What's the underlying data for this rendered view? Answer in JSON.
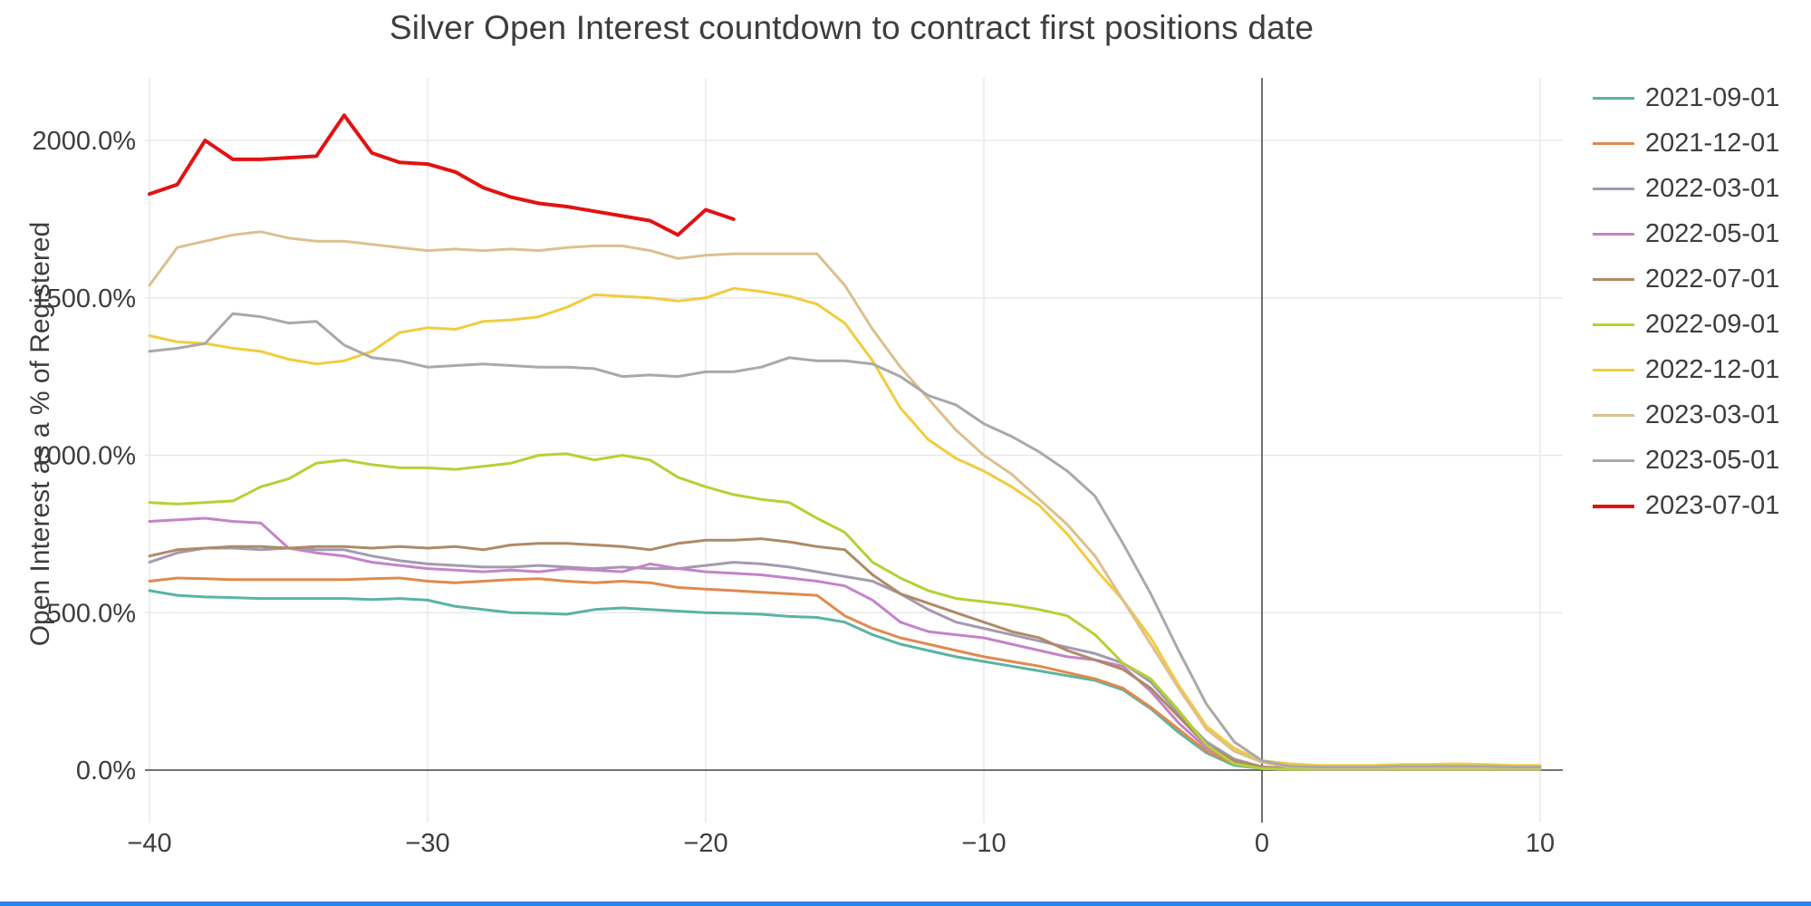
{
  "title": "Silver Open Interest countdown to contract first positions date",
  "chart_data": {
    "type": "line",
    "title": "Silver Open Interest countdown to contract first positions date",
    "xlabel": "",
    "ylabel": "Open Interest as a % of Registered",
    "x_start": -40,
    "x_step": 1,
    "xlim": [
      -40.2,
      10.8
    ],
    "ylim": [
      -90,
      2200
    ],
    "grid": true,
    "legend_position": "right",
    "x_ticks": [
      {
        "v": -40,
        "label": "−40"
      },
      {
        "v": -30,
        "label": "−30"
      },
      {
        "v": -20,
        "label": "−20"
      },
      {
        "v": -10,
        "label": "−10"
      },
      {
        "v": 0,
        "label": "0"
      },
      {
        "v": 10,
        "label": "10"
      }
    ],
    "y_ticks": [
      {
        "v": 0,
        "label": "0.0%"
      },
      {
        "v": 500,
        "label": "500.0%"
      },
      {
        "v": 1000,
        "label": "1000.0%"
      },
      {
        "v": 1500,
        "label": "1500.0%"
      },
      {
        "v": 2000,
        "label": "2000.0%"
      }
    ],
    "zero_lines": {
      "x": 0,
      "y": 0,
      "color": "#444444"
    },
    "series": [
      {
        "name": "2021-09-01",
        "color": "#5ab4a2",
        "width": 3,
        "values": [
          570,
          555,
          550,
          548,
          545,
          545,
          545,
          545,
          542,
          545,
          540,
          520,
          510,
          500,
          498,
          495,
          510,
          515,
          510,
          505,
          500,
          498,
          495,
          488,
          485,
          470,
          430,
          400,
          380,
          360,
          345,
          330,
          315,
          300,
          285,
          255,
          195,
          120,
          55,
          15,
          5,
          3,
          3,
          3,
          3,
          3,
          3,
          3,
          3,
          3,
          3
        ]
      },
      {
        "name": "2021-12-01",
        "color": "#e08a4e",
        "width": 3,
        "values": [
          600,
          610,
          608,
          605,
          605,
          605,
          605,
          605,
          608,
          610,
          600,
          595,
          600,
          605,
          608,
          600,
          595,
          600,
          595,
          580,
          575,
          570,
          565,
          560,
          555,
          490,
          450,
          420,
          400,
          380,
          360,
          345,
          330,
          310,
          290,
          260,
          200,
          130,
          60,
          20,
          5,
          3,
          3,
          3,
          3,
          3,
          3,
          3,
          3,
          3,
          3
        ]
      },
      {
        "name": "2022-03-01",
        "color": "#a49ab0",
        "width": 3,
        "values": [
          660,
          690,
          705,
          705,
          700,
          705,
          700,
          700,
          680,
          665,
          655,
          650,
          645,
          645,
          650,
          645,
          640,
          645,
          640,
          640,
          650,
          660,
          655,
          645,
          630,
          615,
          600,
          560,
          510,
          470,
          450,
          430,
          410,
          390,
          370,
          340,
          280,
          180,
          90,
          35,
          10,
          6,
          6,
          6,
          6,
          6,
          6,
          6,
          6,
          6,
          6
        ]
      },
      {
        "name": "2022-05-01",
        "color": "#c583c9",
        "width": 3,
        "values": [
          790,
          795,
          800,
          790,
          785,
          705,
          690,
          680,
          660,
          650,
          640,
          635,
          630,
          635,
          630,
          640,
          635,
          630,
          655,
          640,
          630,
          625,
          620,
          610,
          600,
          585,
          540,
          470,
          440,
          430,
          420,
          400,
          380,
          360,
          350,
          330,
          250,
          150,
          70,
          25,
          8,
          5,
          5,
          5,
          5,
          5,
          5,
          5,
          5,
          5,
          5
        ]
      },
      {
        "name": "2022-07-01",
        "color": "#af8a67",
        "width": 3,
        "values": [
          680,
          700,
          705,
          710,
          710,
          705,
          710,
          710,
          705,
          710,
          705,
          710,
          700,
          715,
          720,
          720,
          715,
          710,
          700,
          720,
          730,
          730,
          735,
          725,
          710,
          700,
          620,
          560,
          530,
          500,
          470,
          440,
          420,
          380,
          350,
          320,
          260,
          170,
          80,
          30,
          10,
          5,
          5,
          5,
          5,
          5,
          5,
          5,
          5,
          5,
          5
        ]
      },
      {
        "name": "2022-09-01",
        "color": "#b3d235",
        "width": 3,
        "values": [
          850,
          845,
          850,
          855,
          900,
          925,
          975,
          985,
          970,
          960,
          960,
          955,
          965,
          975,
          1000,
          1005,
          985,
          1000,
          985,
          930,
          900,
          875,
          860,
          850,
          800,
          755,
          660,
          610,
          570,
          545,
          535,
          525,
          510,
          490,
          430,
          340,
          290,
          190,
          80,
          20,
          5,
          3,
          3,
          3,
          3,
          3,
          3,
          3,
          3,
          3,
          3
        ]
      },
      {
        "name": "2022-12-01",
        "color": "#f2cc3f",
        "width": 3,
        "values": [
          1380,
          1360,
          1355,
          1340,
          1330,
          1305,
          1290,
          1300,
          1330,
          1390,
          1405,
          1400,
          1425,
          1430,
          1440,
          1470,
          1510,
          1505,
          1500,
          1490,
          1500,
          1530,
          1520,
          1505,
          1480,
          1420,
          1300,
          1150,
          1050,
          990,
          950,
          900,
          840,
          750,
          640,
          540,
          420,
          270,
          140,
          70,
          30,
          20,
          15,
          15,
          15,
          18,
          18,
          20,
          18,
          15,
          15
        ]
      },
      {
        "name": "2023-03-01",
        "color": "#dcc08e",
        "width": 3,
        "values": [
          1540,
          1660,
          1680,
          1700,
          1710,
          1690,
          1680,
          1680,
          1670,
          1660,
          1650,
          1655,
          1650,
          1655,
          1650,
          1660,
          1665,
          1665,
          1650,
          1625,
          1635,
          1640,
          1640,
          1640,
          1640,
          1540,
          1400,
          1280,
          1180,
          1080,
          1000,
          940,
          860,
          780,
          680,
          540,
          400,
          260,
          130,
          60,
          25,
          10,
          8,
          8,
          8,
          8,
          8,
          8,
          8,
          8,
          8
        ]
      },
      {
        "name": "2023-05-01",
        "color": "#a9a9a9",
        "width": 3,
        "values": [
          1330,
          1340,
          1355,
          1450,
          1440,
          1420,
          1425,
          1350,
          1310,
          1300,
          1280,
          1285,
          1290,
          1285,
          1280,
          1280,
          1275,
          1250,
          1255,
          1250,
          1265,
          1265,
          1280,
          1310,
          1300,
          1300,
          1290,
          1250,
          1190,
          1160,
          1100,
          1060,
          1010,
          950,
          870,
          720,
          560,
          380,
          210,
          90,
          30,
          12,
          10,
          10,
          10,
          12,
          12,
          12,
          12,
          10,
          10
        ]
      },
      {
        "name": "2023-07-01",
        "color": "#e21212",
        "width": 4,
        "values": [
          1830,
          1860,
          2000,
          1940,
          1940,
          1945,
          1950,
          2080,
          1960,
          1930,
          1925,
          1900,
          1850,
          1820,
          1800,
          1790,
          1775,
          1760,
          1745,
          1700,
          1780,
          1750
        ]
      }
    ]
  },
  "styles": {
    "grid_color": "#e9e9e9",
    "axis_color": "#444444",
    "tick_label_color": "#3d3d3d",
    "bottom_edge_color": "#2f80e8"
  }
}
